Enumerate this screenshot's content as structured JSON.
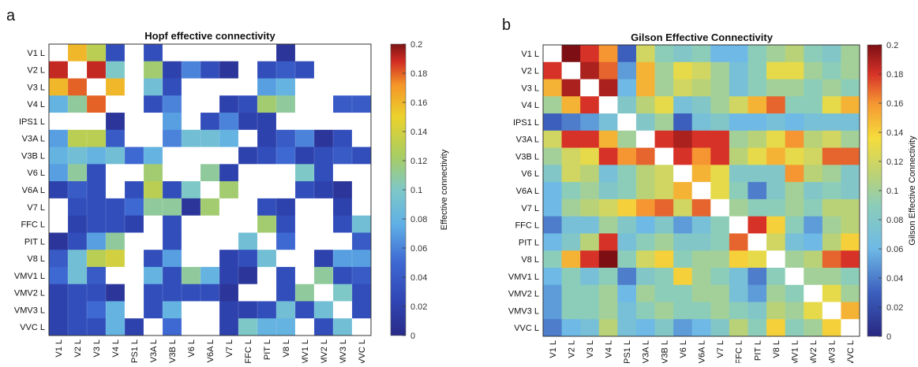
{
  "chart_data": [
    {
      "type": "heatmap",
      "panel_letter": "a",
      "title": "Hopf effective connectivity",
      "colorbar_label": "Effective connectivity",
      "colorbar_ticks": [
        "0.2",
        "0.18",
        "0.16",
        "0.14",
        "0.12",
        "0.1",
        "0.08",
        "0.06",
        "0.04",
        "0.02",
        "0"
      ],
      "colorbar_range": [
        0,
        0.2
      ],
      "row_labels": [
        "V1 L",
        "V2 L",
        "V3 L",
        "V4 L",
        "IPS1 L",
        "V3A L",
        "V3B L",
        "V6 L",
        "V6A L",
        "V7 L",
        "FFC L",
        "PIT L",
        "V8 L",
        "VMV1 L",
        "VMV2 L",
        "VMV3 L",
        "VVC L"
      ],
      "col_labels": [
        "V1 L",
        "V2 L",
        "V3 L",
        "V4 L",
        "IPS1 L",
        "V3A L",
        "V3B L",
        "V6 L",
        "V6A L",
        "V7 L",
        "FFC L",
        "PIT L",
        "V8 L",
        "VMV1 L",
        "VMV2 L",
        "VMV3 L",
        "VVC L"
      ],
      "colormap": "parula",
      "missing_color": "#ffffff",
      "matrix": [
        [
          null,
          0.16,
          0.13,
          0.03,
          null,
          0.03,
          null,
          null,
          null,
          null,
          null,
          null,
          0.01,
          null,
          null,
          null,
          null
        ],
        [
          0.19,
          null,
          0.19,
          0.1,
          null,
          0.12,
          0.02,
          0.06,
          0.03,
          0.01,
          null,
          0.03,
          0.04,
          0.03,
          null,
          null,
          null
        ],
        [
          0.16,
          0.18,
          null,
          0.16,
          null,
          0.09,
          0.03,
          null,
          null,
          null,
          null,
          0.07,
          0.08,
          null,
          null,
          null,
          null
        ],
        [
          0.08,
          0.11,
          0.18,
          null,
          null,
          0.03,
          0.06,
          null,
          null,
          0.02,
          0.03,
          0.12,
          0.11,
          null,
          null,
          0.04,
          0.04
        ],
        [
          null,
          null,
          null,
          0.01,
          null,
          null,
          0.07,
          null,
          0.03,
          0.06,
          0.02,
          0.02,
          null,
          null,
          null,
          null,
          null
        ],
        [
          0.07,
          0.13,
          0.13,
          0.04,
          null,
          null,
          0.06,
          0.09,
          0.09,
          0.08,
          null,
          0.02,
          0.04,
          0.06,
          0.01,
          0.03,
          null
        ],
        [
          0.08,
          0.09,
          0.08,
          0.09,
          0.05,
          0.08,
          null,
          null,
          null,
          null,
          0.02,
          0.03,
          0.05,
          0.02,
          0.03,
          0.04,
          0.03
        ],
        [
          0.07,
          0.11,
          0.03,
          null,
          null,
          0.12,
          null,
          null,
          0.11,
          0.02,
          null,
          null,
          null,
          0.1,
          0.03,
          null,
          null
        ],
        [
          0.02,
          0.04,
          0.03,
          null,
          0.03,
          0.13,
          0.03,
          0.1,
          null,
          0.12,
          null,
          null,
          null,
          0.03,
          0.02,
          0.01,
          null
        ],
        [
          null,
          0.03,
          0.03,
          0.03,
          0.05,
          0.11,
          0.11,
          0.01,
          0.12,
          null,
          null,
          0.03,
          0.02,
          null,
          null,
          0.02,
          null
        ],
        [
          null,
          0.02,
          0.03,
          0.03,
          0.02,
          null,
          0.03,
          null,
          null,
          null,
          null,
          0.12,
          0.03,
          null,
          null,
          0.03,
          0.09
        ],
        [
          0.01,
          0.03,
          0.07,
          0.11,
          null,
          null,
          0.03,
          null,
          null,
          null,
          0.09,
          null,
          0.05,
          null,
          null,
          null,
          0.04
        ],
        [
          0.04,
          0.09,
          0.13,
          0.14,
          null,
          0.03,
          0.07,
          null,
          null,
          0.02,
          0.03,
          0.09,
          null,
          null,
          0.02,
          0.07,
          0.07
        ],
        [
          0.05,
          0.09,
          0.04,
          null,
          null,
          0.08,
          0.03,
          0.11,
          0.08,
          0.02,
          0.01,
          null,
          0.03,
          null,
          0.11,
          0.03,
          0.04
        ],
        [
          0.02,
          0.03,
          0.03,
          0.01,
          null,
          0.03,
          0.03,
          0.03,
          0.03,
          0.01,
          null,
          null,
          0.03,
          0.11,
          null,
          0.1,
          0.03
        ],
        [
          0.02,
          0.03,
          0.05,
          0.08,
          null,
          0.03,
          0.08,
          null,
          null,
          0.02,
          0.02,
          0.03,
          0.09,
          0.03,
          0.09,
          null,
          0.03
        ],
        [
          0.02,
          0.03,
          0.03,
          0.08,
          0.02,
          null,
          0.05,
          null,
          null,
          0.02,
          0.1,
          0.08,
          0.08,
          null,
          0.03,
          0.09,
          null
        ]
      ]
    },
    {
      "type": "heatmap",
      "panel_letter": "b",
      "title": "Gilson Effective Connectivity",
      "colorbar_label": "Gilson Effective Connectivity",
      "colorbar_ticks": [
        "0.2",
        "0.18",
        "0.16",
        "0.14",
        "0.12",
        "0.1",
        "0.08",
        "0.06",
        "0.04",
        "0.02",
        "0"
      ],
      "colorbar_range": [
        0,
        0.2
      ],
      "row_labels": [
        "V1 L",
        "V2 L",
        "V3 L",
        "V4 L",
        "IPS1 L",
        "V3A L",
        "V3B L",
        "V6 L",
        "V6A L",
        "V7 L",
        "FFC L",
        "PIT L",
        "V8 L",
        "VMV1 L",
        "VMV2 L",
        "VMV3 L",
        "VVC L"
      ],
      "col_labels": [
        "V1 L",
        "V2 L",
        "V3 L",
        "V4 L",
        "IPS1 L",
        "V3A L",
        "V3B L",
        "V6 L",
        "V6A L",
        "V7 L",
        "FFC L",
        "PIT L",
        "V8 L",
        "VMV1 L",
        "VMV2 L",
        "VMV3 L",
        "VVC L"
      ],
      "colormap": "jet",
      "missing_color": "#ffffff",
      "matrix": [
        [
          null,
          0.2,
          0.18,
          0.16,
          0.03,
          0.12,
          0.09,
          0.08,
          0.09,
          0.06,
          0.06,
          0.09,
          0.1,
          0.11,
          0.09,
          0.08,
          0.1
        ],
        [
          0.18,
          null,
          0.19,
          0.17,
          0.05,
          0.15,
          0.1,
          0.13,
          0.12,
          0.1,
          0.07,
          0.09,
          0.13,
          0.13,
          0.1,
          0.09,
          0.1
        ],
        [
          0.15,
          0.19,
          null,
          0.19,
          0.06,
          0.15,
          0.1,
          0.12,
          0.11,
          0.1,
          0.07,
          0.09,
          0.1,
          0.1,
          0.09,
          0.1,
          0.09
        ],
        [
          0.1,
          0.15,
          0.18,
          null,
          0.08,
          0.11,
          0.13,
          0.07,
          0.08,
          0.1,
          0.12,
          0.15,
          0.17,
          0.09,
          0.09,
          0.13,
          0.15
        ],
        [
          0.03,
          0.04,
          0.05,
          0.07,
          null,
          0.08,
          0.1,
          0.03,
          0.07,
          0.08,
          0.06,
          0.06,
          0.07,
          0.06,
          0.07,
          0.07,
          0.07
        ],
        [
          0.12,
          0.18,
          0.18,
          0.15,
          0.1,
          null,
          0.18,
          0.19,
          0.18,
          0.18,
          0.1,
          0.11,
          0.13,
          0.16,
          0.11,
          0.12,
          0.1
        ],
        [
          0.1,
          0.12,
          0.13,
          0.18,
          0.16,
          0.17,
          null,
          0.18,
          0.16,
          0.18,
          0.11,
          0.13,
          0.15,
          0.13,
          0.12,
          0.17,
          0.17
        ],
        [
          0.08,
          0.12,
          0.11,
          0.07,
          0.09,
          0.11,
          0.12,
          null,
          0.15,
          0.13,
          0.08,
          0.08,
          0.08,
          0.16,
          0.11,
          0.1,
          0.08
        ],
        [
          0.06,
          0.09,
          0.1,
          0.08,
          0.09,
          0.11,
          0.12,
          0.15,
          null,
          0.13,
          0.09,
          0.04,
          0.08,
          0.1,
          0.08,
          0.09,
          0.08
        ],
        [
          0.06,
          0.1,
          0.11,
          0.12,
          0.14,
          0.16,
          0.17,
          0.12,
          0.17,
          null,
          0.1,
          0.09,
          0.09,
          0.1,
          0.09,
          0.11,
          0.11
        ],
        [
          0.04,
          0.07,
          0.07,
          0.1,
          0.08,
          0.06,
          0.08,
          0.05,
          0.07,
          0.09,
          null,
          0.18,
          0.14,
          0.09,
          0.05,
          0.1,
          0.11
        ],
        [
          0.06,
          0.08,
          0.11,
          0.18,
          0.07,
          0.09,
          0.1,
          0.08,
          0.08,
          0.09,
          0.17,
          null,
          0.12,
          0.07,
          0.06,
          0.11,
          0.14
        ],
        [
          0.09,
          0.15,
          0.18,
          0.2,
          0.09,
          0.12,
          0.14,
          0.09,
          0.1,
          0.1,
          0.14,
          0.13,
          null,
          0.1,
          0.11,
          0.17,
          0.18
        ],
        [
          0.06,
          0.09,
          0.07,
          0.09,
          0.04,
          0.08,
          0.09,
          0.14,
          0.1,
          0.09,
          0.07,
          0.04,
          0.09,
          null,
          0.1,
          0.1,
          0.09
        ],
        [
          0.05,
          0.09,
          0.09,
          0.1,
          0.06,
          0.1,
          0.09,
          0.09,
          0.1,
          0.1,
          0.07,
          0.05,
          0.1,
          0.09,
          null,
          0.13,
          0.1
        ],
        [
          0.05,
          0.09,
          0.09,
          0.1,
          0.07,
          0.09,
          0.1,
          0.09,
          0.09,
          0.1,
          0.09,
          0.08,
          0.11,
          0.1,
          0.13,
          null,
          0.15
        ],
        [
          0.04,
          0.06,
          0.07,
          0.11,
          0.07,
          0.06,
          0.08,
          0.05,
          0.06,
          0.08,
          0.11,
          0.09,
          0.14,
          0.09,
          0.1,
          0.14,
          null
        ]
      ]
    }
  ]
}
